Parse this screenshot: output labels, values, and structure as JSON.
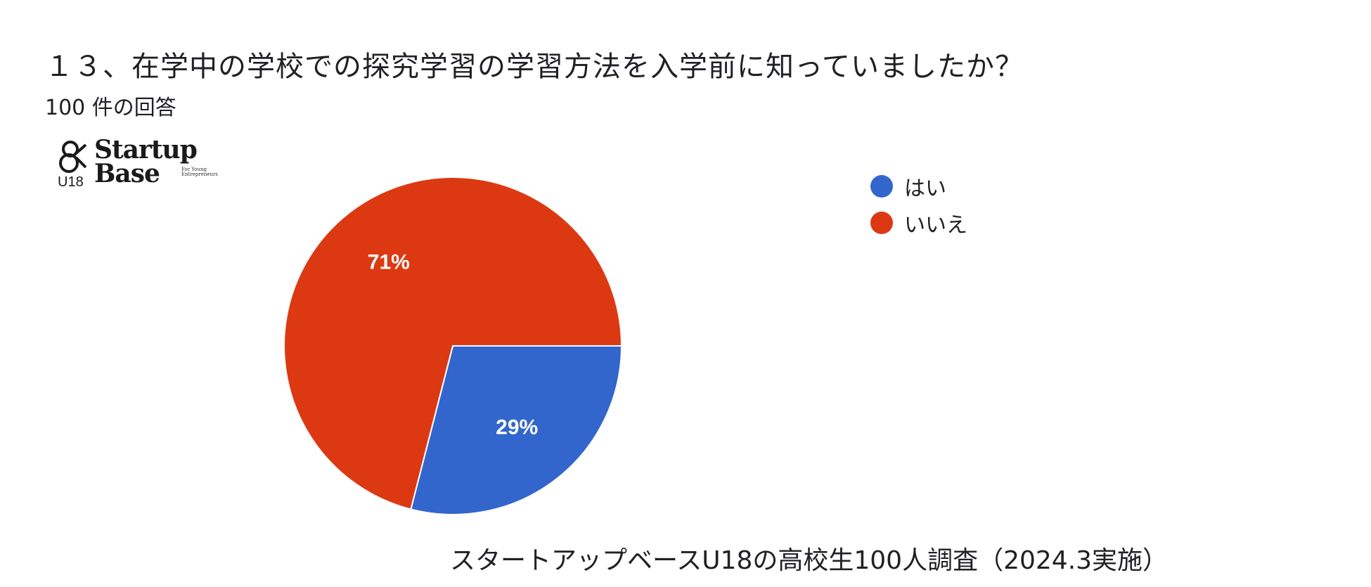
{
  "header": {
    "title": "１３、在学中の学校での探究学習の学習方法を入学前に知っていましたか？",
    "response_count": "100 件の回答"
  },
  "logo": {
    "name_line1": "Startup",
    "name_line2": "Base",
    "tagline": "For Young Entrepreneurs",
    "badge": "U18"
  },
  "chart_data": {
    "type": "pie",
    "title": "１３、在学中の学校での探究学習の学習方法を入学前に知っていましたか？",
    "categories": [
      "はい",
      "いいえ"
    ],
    "values": [
      29,
      71
    ],
    "labels": [
      "29%",
      "71%"
    ],
    "colors": [
      "#3366cc",
      "#dc3912"
    ],
    "legend_position": "right"
  },
  "footer": {
    "note": "スタートアップベースU18の高校生100人調査（2024.3実施）"
  }
}
